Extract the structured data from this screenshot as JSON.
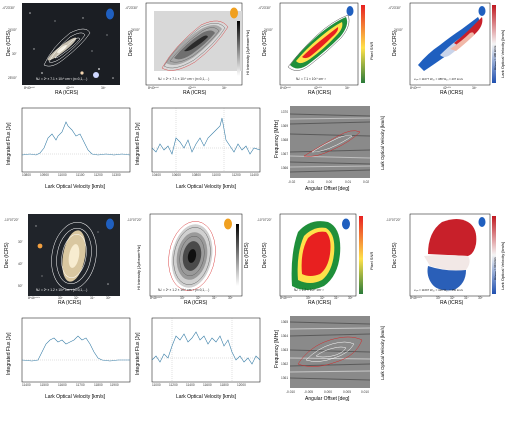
{
  "top": {
    "optical": {
      "ra_axis": "RA (ICRS)",
      "dec_axis": "Dec (ICRS)",
      "note": "Nₙᴵ = 2ⁿ × 7.1 × 10¹⁹ cm⁻² (n=0,1,…)",
      "ra_ticks": [
        "8ʰ40ᵐ⁰⁰",
        "42ᵐ⁵⁰",
        "34ˢ"
      ],
      "dec_ticks": [
        "-4°23'30\"",
        "24'00\"",
        "30\"",
        "25'00\""
      ]
    },
    "mom0": {
      "ra_axis": "RA (ICRS)",
      "dec_axis": "Dec (ICRS)",
      "cbar": "HI Intensity [Jy/beam*Hz]",
      "note": "Nₙᴵ = 2ⁿ × 7.1 × 10¹⁹ cm⁻² (n=0,1,…)",
      "ra_ticks": [
        "8ʰ40ᵐ⁰⁰",
        "42ᵐ⁵⁰",
        "34ˢ"
      ],
      "dec_ticks": [
        "-4°23'30\"",
        "24'00\"",
        "30\"",
        "25'00\""
      ]
    },
    "snr": {
      "ra_axis": "RA (ICRS)",
      "dec_axis": "Dec (ICRS)",
      "cbar": "Pixel SNR",
      "note": "Nₙᴵ = 7.1 × 10¹⁹ cm⁻²",
      "ra_ticks": [
        "8ʰ40ᵐ⁰⁰",
        "42ᵐ⁵⁰",
        "34ˢ"
      ],
      "dec_ticks": [
        "-4°23'30\"",
        "24'00\"",
        "30\"",
        "25'00\""
      ]
    },
    "velocity": {
      "ra_axis": "RA (ICRS)",
      "dec_axis": "Dec (ICRS)",
      "cbar": "Lark Optical Velocity [km/s]",
      "cbar_inner": "Δvₒₙₛₒᵣ = 100 km/s",
      "note": "vₛᵧₛ = 11077  W₅₀ = 388  W₂₀ = 407 km/s",
      "ra_ticks": [
        "8ʰ40ᵐ⁰⁰",
        "42ᵐ⁵⁰",
        "34ˢ"
      ],
      "dec_ticks": [
        "-4°23'30\"",
        "24'00\"",
        "30\"",
        "25'00\""
      ]
    },
    "spec1": {
      "xlabel": "Lark Optical Velocity [km/s]",
      "ylabel": "Integrated Flux [Jy]",
      "x_ticks": [
        "10800",
        "10900",
        "11000",
        "11100",
        "11200",
        "11300",
        "11400"
      ]
    },
    "spec2": {
      "xlabel": "Lark Optical Velocity [km/s]",
      "ylabel": "Integrated Flux [Jy]",
      "x_ticks": [
        "10400",
        "10600",
        "10800",
        "11000",
        "11200",
        "11400"
      ]
    },
    "pv": {
      "xlabel": "Angular Offset [deg]",
      "ylabel": "Frequency [MHz]",
      "ylabel_right": "Lark Optical Velocity [km/s]",
      "x_ticks": [
        "-0.02",
        "-0.01",
        "0.00",
        "0.01",
        "0.02"
      ],
      "y_ticks": [
        "1370",
        "1369",
        "1368",
        "1367",
        "1366"
      ]
    }
  },
  "bottom": {
    "optical": {
      "ra_axis": "RA (ICRS)",
      "dec_axis": "Dec (ICRS)",
      "note": "Nₙᴵ = 2ⁿ × 1.2 × 10²⁰ cm⁻² (n=0,1,…)",
      "ra_ticks": [
        "8ʰ44ᵐ⁰⁰ˢ",
        "33ˢ",
        "32ˢ",
        "31ˢ",
        "30ˢ"
      ],
      "dec_ticks": [
        "-10°07'20\"",
        "30\"",
        "40\"",
        "50\""
      ]
    },
    "mom0": {
      "ra_axis": "RA (ICRS)",
      "dec_axis": "Dec (ICRS)",
      "cbar": "HI Intensity [Jy/beam*Hz]",
      "note": "Nₙᴵ = 2ⁿ × 1.2 × 10²⁰ cm⁻² (n=0,1,…)",
      "ra_ticks": [
        "8ʰ44ᵐ⁰⁰ˢ",
        "33ˢ",
        "32ˢ",
        "31ˢ",
        "30ˢ"
      ],
      "dec_ticks": [
        "-10°07'20\"",
        "30\"",
        "40\"",
        "50\""
      ]
    },
    "snr": {
      "ra_axis": "RA (ICRS)",
      "dec_axis": "Dec (ICRS)",
      "cbar": "Pixel SNR",
      "note": "Nₙᴵ = 1.2 × 10²⁰ cm⁻²",
      "ra_ticks": [
        "8ʰ44ᵐ⁰⁰ˢ",
        "33ˢ",
        "32ˢ",
        "31ˢ",
        "30ˢ"
      ],
      "dec_ticks": [
        "-10°07'20\"",
        "30\"",
        "40\"",
        "50\""
      ]
    },
    "velocity": {
      "ra_axis": "RA (ICRS)",
      "dec_axis": "Dec (ICRS)",
      "cbar": "Lark Optical Velocity [km/s]",
      "cbar_inner": "Δvₒₙₛₒᵣ = 60 km/s",
      "note": "vₛᵧₛ = 11697  W₅₀ = 426  W₂₀ = 450 km/s",
      "ra_ticks": [
        "8ʰ44ᵐ⁰⁰ˢ",
        "33ˢ",
        "32ˢ",
        "31ˢ",
        "30ˢ"
      ],
      "dec_ticks": [
        "-10°07'20\"",
        "30\"",
        "40\"",
        "50\""
      ]
    },
    "spec1": {
      "xlabel": "Lark Optical Velocity [km/s]",
      "ylabel": "Integrated Flux [Jy]",
      "x_ticks": [
        "11400",
        "11500",
        "11600",
        "11700",
        "11800",
        "11900",
        "12000"
      ]
    },
    "spec2": {
      "xlabel": "Lark Optical Velocity [km/s]",
      "ylabel": "Integrated Flux [Jy]",
      "x_ticks": [
        "11000",
        "11200",
        "11400",
        "11600",
        "11800",
        "12000",
        "12200"
      ]
    },
    "pv": {
      "xlabel": "Angular Offset [deg]",
      "ylabel": "Frequency [MHz]",
      "ylabel_right": "Lark Optical Velocity [km/s]",
      "x_ticks": [
        "-0.010",
        "-0.005",
        "0.000",
        "0.005",
        "0.010"
      ],
      "y_ticks": [
        "1365",
        "1364",
        "1363",
        "1362",
        "1361"
      ]
    }
  },
  "colors": {
    "beam_blue": "#1f5fbf",
    "beam_orange": "#f0a020",
    "contour_white": "#ffffff",
    "contour_red": "#d62728",
    "spectrum_line": "#3a7fa8"
  }
}
